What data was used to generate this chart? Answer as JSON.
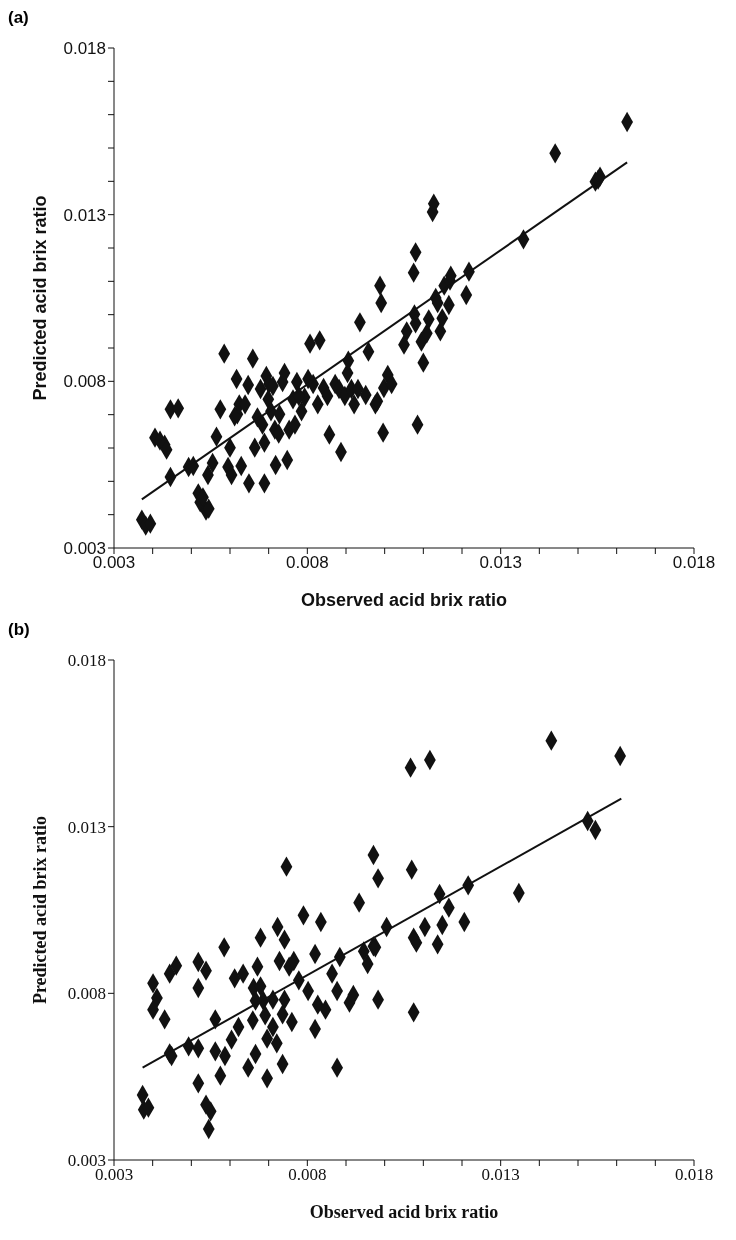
{
  "chart_data": [
    {
      "type": "scatter",
      "title": "(a)",
      "xlabel": "Observed acid brix ratio",
      "ylabel": "Predicted acid brix ratio",
      "xlim": [
        0.003,
        0.018
      ],
      "ylim": [
        0.003,
        0.018
      ],
      "xticks": [
        0.003,
        {
          "value": 0.004,
          "label": null
        },
        {
          "value": 0.005,
          "label": null
        },
        {
          "value": 0.006,
          "label": null
        },
        {
          "value": 0.007,
          "label": null
        },
        0.008,
        {
          "value": 0.009,
          "label": null
        },
        {
          "value": 0.01,
          "label": null
        },
        {
          "value": 0.011,
          "label": null
        },
        {
          "value": 0.012,
          "label": null
        },
        0.013,
        {
          "value": 0.014,
          "label": null
        },
        {
          "value": 0.015,
          "label": null
        },
        {
          "value": 0.016,
          "label": null
        },
        {
          "value": 0.017,
          "label": null
        },
        0.018
      ],
      "yticks": [
        0.003,
        {
          "value": 0.004,
          "label": null
        },
        {
          "value": 0.005,
          "label": null
        },
        {
          "value": 0.006,
          "label": null
        },
        {
          "value": 0.007,
          "label": null
        },
        0.008,
        {
          "value": 0.009,
          "label": null
        },
        {
          "value": 0.01,
          "label": null
        },
        {
          "value": 0.011,
          "label": null
        },
        {
          "value": 0.012,
          "label": null
        },
        0.013,
        {
          "value": 0.014,
          "label": null
        },
        {
          "value": 0.015,
          "label": null
        },
        {
          "value": 0.016,
          "label": null
        },
        {
          "value": 0.017,
          "label": null
        },
        0.018
      ],
      "grid": false,
      "marker": "diamond",
      "series": [
        {
          "color": "#111111",
          "x": [
            0.00372,
            0.00382,
            0.00394,
            0.00406,
            0.00419,
            0.00431,
            0.00436,
            0.00446,
            0.00446,
            0.00466,
            0.00493,
            0.00505,
            0.00518,
            0.00523,
            0.0053,
            0.00538,
            0.00545,
            0.00543,
            0.00555,
            0.00565,
            0.00575,
            0.00585,
            0.00595,
            0.006,
            0.00604,
            0.00612,
            0.00629,
            0.00617,
            0.00619,
            0.00624,
            0.00639,
            0.00647,
            0.00649,
            0.00659,
            0.00664,
            0.00671,
            0.00679,
            0.00684,
            0.00689,
            0.00689,
            0.00694,
            0.00699,
            0.00701,
            0.00706,
            0.00711,
            0.00718,
            0.00716,
            0.00726,
            0.00728,
            0.00736,
            0.00741,
            0.00748,
            0.00753,
            0.00763,
            0.00768,
            0.00773,
            0.00785,
            0.00793,
            0.00778,
            0.00802,
            0.00807,
            0.00815,
            0.00827,
            0.00832,
            0.00842,
            0.00852,
            0.00857,
            0.00872,
            0.00882,
            0.00897,
            0.00904,
            0.00906,
            0.00914,
            0.00887,
            0.00921,
            0.00931,
            0.00936,
            0.00951,
            0.00958,
            0.00976,
            0.00981,
            0.00988,
            0.00991,
            0.00998,
            0.01008,
            0.01018,
            0.00996,
            0.0105,
            0.01057,
            0.01075,
            0.0108,
            0.01077,
            0.0108,
            0.01085,
            0.01095,
            0.01109,
            0.011,
            0.01124,
            0.01114,
            0.01127,
            0.01132,
            0.01137,
            0.01144,
            0.01154,
            0.01149,
            0.01169,
            0.01171,
            0.01166,
            0.01211,
            0.01218,
            0.01359,
            0.01441,
            0.01545,
            0.01552,
            0.01557,
            0.01627
          ],
          "values": [
            0.00385,
            0.00367,
            0.00373,
            0.00631,
            0.00622,
            0.0061,
            0.00595,
            0.00513,
            0.00716,
            0.00719,
            0.00543,
            0.00546,
            0.00464,
            0.00437,
            0.00452,
            0.00412,
            0.00418,
            0.00519,
            0.00555,
            0.00634,
            0.00716,
            0.00883,
            0.00543,
            0.00601,
            0.00519,
            0.00695,
            0.00546,
            0.00807,
            0.00701,
            0.00731,
            0.00731,
            0.00789,
            0.00494,
            0.00868,
            0.00601,
            0.00692,
            0.00777,
            0.0067,
            0.00616,
            0.00494,
            0.00816,
            0.00746,
            0.00792,
            0.0071,
            0.00786,
            0.00549,
            0.00655,
            0.00643,
            0.00701,
            0.00798,
            0.00825,
            0.00564,
            0.00655,
            0.00746,
            0.0067,
            0.00798,
            0.0071,
            0.00752,
            0.00756,
            0.00807,
            0.00913,
            0.00792,
            0.00731,
            0.00923,
            0.0078,
            0.00756,
            0.0064,
            0.00792,
            0.00777,
            0.00756,
            0.00825,
            0.00862,
            0.00777,
            0.00588,
            0.00731,
            0.00777,
            0.00977,
            0.00759,
            0.00889,
            0.00731,
            0.0074,
            0.01087,
            0.01035,
            0.0078,
            0.00819,
            0.00792,
            0.00646,
            0.0091,
            0.0095,
            0.01126,
            0.01187,
            0.01001,
            0.00974,
            0.0067,
            0.00919,
            0.00944,
            0.00856,
            0.01308,
            0.00986,
            0.01333,
            0.0105,
            0.01035,
            0.0095,
            0.01087,
            0.00989,
            0.01102,
            0.01117,
            0.01029,
            0.01059,
            0.01129,
            0.01226,
            0.01484,
            0.01399,
            0.01405,
            0.01414,
            0.01578
          ]
        },
        {
          "type": "line",
          "color": "#111111",
          "marker": "none",
          "x": [
            0.00372,
            0.01627
          ],
          "values": [
            0.00446,
            0.01457
          ]
        }
      ]
    },
    {
      "type": "scatter",
      "title": "(b)",
      "xlabel": "Observed acid brix ratio",
      "ylabel": "Predicted acid brix ratio",
      "xlim": [
        0.003,
        0.018
      ],
      "ylim": [
        0.003,
        0.018
      ],
      "xticks": [
        0.003,
        {
          "value": 0.004,
          "label": null
        },
        {
          "value": 0.005,
          "label": null
        },
        {
          "value": 0.006,
          "label": null
        },
        {
          "value": 0.007,
          "label": null
        },
        0.008,
        {
          "value": 0.009,
          "label": null
        },
        {
          "value": 0.01,
          "label": null
        },
        {
          "value": 0.011,
          "label": null
        },
        {
          "value": 0.012,
          "label": null
        },
        0.013,
        {
          "value": 0.014,
          "label": null
        },
        {
          "value": 0.015,
          "label": null
        },
        {
          "value": 0.016,
          "label": null
        },
        {
          "value": 0.017,
          "label": null
        },
        0.018
      ],
      "yticks": [
        0.003,
        0.008,
        0.013,
        0.018
      ],
      "grid": false,
      "marker": "diamond",
      "series": [
        {
          "color": "#111111",
          "x": [
            0.00374,
            0.00377,
            0.00389,
            0.00401,
            0.00411,
            0.00401,
            0.00431,
            0.00444,
            0.00449,
            0.00444,
            0.00461,
            0.00493,
            0.00518,
            0.00518,
            0.00538,
            0.00518,
            0.00518,
            0.00538,
            0.0055,
            0.00545,
            0.00562,
            0.00562,
            0.00587,
            0.00575,
            0.00585,
            0.00604,
            0.00622,
            0.00612,
            0.00634,
            0.00647,
            0.00659,
            0.00666,
            0.00661,
            0.00671,
            0.00679,
            0.00666,
            0.00686,
            0.00679,
            0.00691,
            0.00696,
            0.00696,
            0.00711,
            0.00721,
            0.00711,
            0.00728,
            0.00723,
            0.00741,
            0.00746,
            0.00741,
            0.00736,
            0.00736,
            0.0076,
            0.00753,
            0.00765,
            0.00778,
            0.0079,
            0.00802,
            0.0082,
            0.0082,
            0.00827,
            0.00835,
            0.00847,
            0.00864,
            0.00877,
            0.00877,
            0.00884,
            0.00909,
            0.00919,
            0.00934,
            0.00946,
            0.00956,
            0.00971,
            0.00971,
            0.00983,
            0.00983,
            0.01005,
            0.0107,
            0.01067,
            0.01117,
            0.00976,
            0.01142,
            0.01166,
            0.01216,
            0.01075,
            0.01104,
            0.01082,
            0.01149,
            0.01137,
            0.01206,
            0.01075,
            0.01347,
            0.01431,
            0.01525,
            0.01545,
            0.01609
          ],
          "values": [
            0.00495,
            0.00451,
            0.00457,
            0.0083,
            0.00786,
            0.00751,
            0.00722,
            0.0062,
            0.00612,
            0.00859,
            0.00883,
            0.00641,
            0.00635,
            0.00894,
            0.00868,
            0.00816,
            0.0053,
            0.00466,
            0.00446,
            0.00393,
            0.00722,
            0.00626,
            0.00612,
            0.00553,
            0.00938,
            0.00661,
            0.00699,
            0.00845,
            0.00859,
            0.00577,
            0.00719,
            0.00618,
            0.00816,
            0.0088,
            0.00967,
            0.00778,
            0.00778,
            0.00821,
            0.00734,
            0.00664,
            0.00545,
            0.00699,
            0.0065,
            0.00781,
            0.00897,
            0.00999,
            0.00961,
            0.0118,
            0.00781,
            0.00737,
            0.00588,
            0.00714,
            0.0088,
            0.00897,
            0.00839,
            0.01034,
            0.00807,
            0.00918,
            0.00693,
            0.00766,
            0.01014,
            0.00751,
            0.00859,
            0.00577,
            0.00807,
            0.00909,
            0.00772,
            0.00795,
            0.01072,
            0.00926,
            0.00888,
            0.00941,
            0.01215,
            0.01145,
            0.00781,
            0.00999,
            0.01171,
            0.01477,
            0.015,
            0.00938,
            0.01098,
            0.01057,
            0.01124,
            0.00967,
            0.00999,
            0.00952,
            0.01005,
            0.00947,
            0.01014,
            0.00743,
            0.01101,
            0.01558,
            0.01317,
            0.0129,
            0.01512
          ]
        },
        {
          "type": "line",
          "color": "#111111",
          "marker": "none",
          "x": [
            0.00374,
            0.01612
          ],
          "values": [
            0.00577,
            0.01384
          ]
        }
      ]
    }
  ]
}
